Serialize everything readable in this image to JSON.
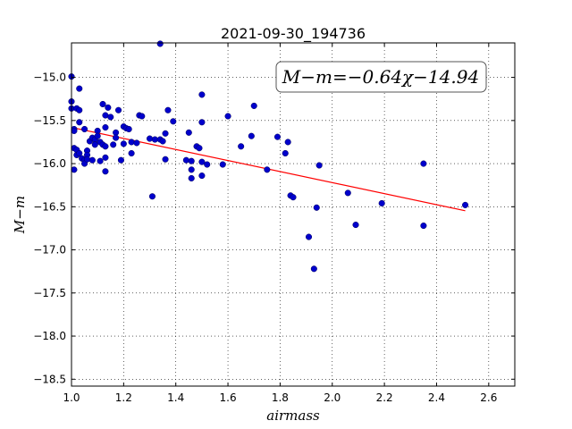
{
  "chart_data": {
    "type": "scatter",
    "title": "2021-09-30_194736",
    "xlabel": "airmass",
    "ylabel": "M−m",
    "xlim": [
      1.0,
      2.7
    ],
    "ylim": [
      -18.58,
      -14.6
    ],
    "xticks": [
      1.0,
      1.2,
      1.4,
      1.6,
      1.8,
      2.0,
      2.2,
      2.4,
      2.6
    ],
    "xtick_labels": [
      "1.0",
      "1.2",
      "1.4",
      "1.6",
      "1.8",
      "2.0",
      "2.2",
      "2.4",
      "2.6"
    ],
    "yticks": [
      -15.0,
      -15.5,
      -16.0,
      -16.5,
      -17.0,
      -17.5,
      -18.0,
      -18.5
    ],
    "ytick_labels": [
      "−15.0",
      "−15.5",
      "−16.0",
      "−16.5",
      "−17.0",
      "−17.5",
      "−18.0",
      "−18.5"
    ],
    "grid": true,
    "annotation": "M−m=−0.64χ−14.94",
    "annotation_position": "top-right",
    "fit": {
      "slope": -0.64,
      "intercept": -14.94,
      "x_range": [
        1.0,
        2.51
      ],
      "color": "#ff0000"
    },
    "point_color": "#0000cc",
    "points": [
      [
        1.0,
        -14.99
      ],
      [
        1.0,
        -15.28
      ],
      [
        1.0,
        -15.36
      ],
      [
        1.01,
        -15.6
      ],
      [
        1.01,
        -15.62
      ],
      [
        1.01,
        -15.82
      ],
      [
        1.01,
        -16.07
      ],
      [
        1.02,
        -15.36
      ],
      [
        1.02,
        -15.84
      ],
      [
        1.02,
        -15.9
      ],
      [
        1.03,
        -15.13
      ],
      [
        1.03,
        -15.38
      ],
      [
        1.03,
        -15.52
      ],
      [
        1.03,
        -15.88
      ],
      [
        1.04,
        -15.94
      ],
      [
        1.05,
        -15.6
      ],
      [
        1.05,
        -15.96
      ],
      [
        1.05,
        -16.0
      ],
      [
        1.06,
        -15.85
      ],
      [
        1.06,
        -15.9
      ],
      [
        1.06,
        -15.95
      ],
      [
        1.07,
        -15.74
      ],
      [
        1.08,
        -15.7
      ],
      [
        1.08,
        -15.96
      ],
      [
        1.09,
        -15.72
      ],
      [
        1.09,
        -15.78
      ],
      [
        1.1,
        -15.62
      ],
      [
        1.1,
        -15.68
      ],
      [
        1.11,
        -15.75
      ],
      [
        1.11,
        -15.97
      ],
      [
        1.12,
        -15.31
      ],
      [
        1.12,
        -15.78
      ],
      [
        1.13,
        -15.44
      ],
      [
        1.13,
        -15.58
      ],
      [
        1.13,
        -15.8
      ],
      [
        1.13,
        -15.93
      ],
      [
        1.13,
        -16.09
      ],
      [
        1.14,
        -15.35
      ],
      [
        1.15,
        -15.46
      ],
      [
        1.16,
        -15.78
      ],
      [
        1.17,
        -15.64
      ],
      [
        1.17,
        -15.7
      ],
      [
        1.18,
        -15.38
      ],
      [
        1.19,
        -15.96
      ],
      [
        1.2,
        -15.57
      ],
      [
        1.2,
        -15.77
      ],
      [
        1.21,
        -15.59
      ],
      [
        1.22,
        -15.6
      ],
      [
        1.23,
        -15.75
      ],
      [
        1.23,
        -15.88
      ],
      [
        1.25,
        -15.76
      ],
      [
        1.26,
        -15.44
      ],
      [
        1.27,
        -15.45
      ],
      [
        1.3,
        -15.71
      ],
      [
        1.31,
        -16.38
      ],
      [
        1.32,
        -15.72
      ],
      [
        1.34,
        -14.61
      ],
      [
        1.34,
        -15.72
      ],
      [
        1.35,
        -15.74
      ],
      [
        1.36,
        -15.65
      ],
      [
        1.36,
        -15.95
      ],
      [
        1.37,
        -15.38
      ],
      [
        1.39,
        -15.51
      ],
      [
        1.44,
        -15.96
      ],
      [
        1.45,
        -15.64
      ],
      [
        1.46,
        -15.97
      ],
      [
        1.46,
        -16.07
      ],
      [
        1.46,
        -16.17
      ],
      [
        1.48,
        -15.8
      ],
      [
        1.49,
        -15.82
      ],
      [
        1.5,
        -15.2
      ],
      [
        1.5,
        -15.52
      ],
      [
        1.5,
        -15.98
      ],
      [
        1.5,
        -16.14
      ],
      [
        1.52,
        -16.01
      ],
      [
        1.58,
        -16.01
      ],
      [
        1.6,
        -15.45
      ],
      [
        1.65,
        -15.8
      ],
      [
        1.69,
        -15.68
      ],
      [
        1.7,
        -15.33
      ],
      [
        1.75,
        -16.07
      ],
      [
        1.79,
        -15.69
      ],
      [
        1.82,
        -15.88
      ],
      [
        1.83,
        -15.75
      ],
      [
        1.84,
        -16.37
      ],
      [
        1.85,
        -16.39
      ],
      [
        1.91,
        -16.85
      ],
      [
        1.93,
        -17.22
      ],
      [
        1.94,
        -16.51
      ],
      [
        1.95,
        -16.02
      ],
      [
        2.06,
        -16.34
      ],
      [
        2.09,
        -16.71
      ],
      [
        2.19,
        -16.46
      ],
      [
        2.35,
        -16.0
      ],
      [
        2.35,
        -16.72
      ],
      [
        2.51,
        -16.48
      ]
    ]
  }
}
